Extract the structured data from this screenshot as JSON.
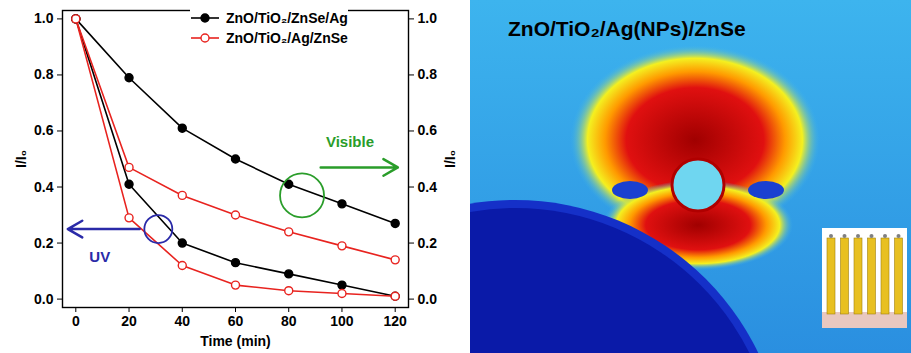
{
  "chart_data": {
    "type": "line",
    "x": [
      0,
      20,
      40,
      60,
      80,
      100,
      120
    ],
    "xlim": [
      -5,
      125
    ],
    "xticks": [
      0,
      20,
      40,
      60,
      80,
      100,
      120
    ],
    "xlabel": "Time (min)",
    "ylabel": "I/I₀",
    "ylim": [
      -0.03,
      1.03
    ],
    "yticks": [
      {
        "value": 0,
        "label": "0.0"
      },
      0.2,
      0.4,
      0.6,
      0.8,
      {
        "value": 1,
        "label": "1.0"
      }
    ],
    "y2label": "I/I₀",
    "y2lim": [
      -0.03,
      1.03
    ],
    "y2ticks": [
      {
        "value": 0,
        "label": "0.0"
      },
      0.2,
      0.4,
      0.6,
      0.8,
      {
        "value": 1,
        "label": "1.0"
      }
    ],
    "legend": "top",
    "series": [
      {
        "name": "ZnO/TiO₂/ZnSe/Ag",
        "color": "#000000",
        "marker": "circle",
        "values": [
          1.0,
          0.41,
          0.2,
          0.13,
          0.09,
          0.05,
          0.01
        ]
      },
      {
        "name": "ZnO/TiO₂/Ag/ZnSe",
        "color": "#e8231f",
        "marker": "open_circle",
        "values": [
          1.0,
          0.29,
          0.12,
          0.05,
          0.03,
          0.02,
          0.01
        ]
      },
      {
        "name": "ZnO/TiO₂/ZnSe/Ag",
        "color": "#000000",
        "marker": "circle",
        "axis": "y2",
        "values": [
          1.0,
          0.79,
          0.61,
          0.5,
          0.41,
          0.34,
          0.27
        ]
      },
      {
        "name": "ZnO/TiO₂/Ag/ZnSe",
        "color": "#e8231f",
        "marker": "open_circle",
        "axis": "y2",
        "values": [
          1.0,
          0.47,
          0.37,
          0.3,
          0.24,
          0.19,
          0.14
        ]
      }
    ],
    "annotations": [
      {
        "text": "UV",
        "axis": "y",
        "color": "#2a2aa8"
      },
      {
        "text": "Visible",
        "axis": "y2",
        "color": "#2a9d2a"
      }
    ]
  },
  "image": {
    "title": "ZnO/TiO₂/Ag(NPs)/ZnSe"
  }
}
